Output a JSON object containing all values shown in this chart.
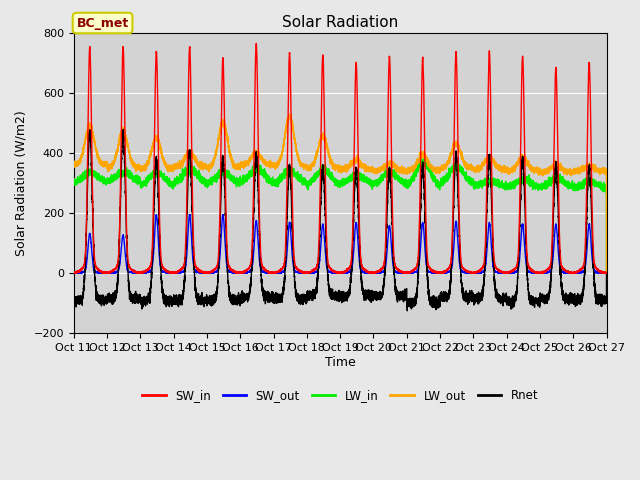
{
  "title": "Solar Radiation",
  "xlabel": "Time",
  "ylabel": "Solar Radiation (W/m2)",
  "ylim": [
    -200,
    800
  ],
  "n_days": 16,
  "dt_per_day": 480,
  "series": {
    "SW_in": {
      "color": "#ff0000",
      "lw": 1.0
    },
    "SW_out": {
      "color": "#0000ff",
      "lw": 1.0
    },
    "LW_in": {
      "color": "#00ee00",
      "lw": 1.0
    },
    "LW_out": {
      "color": "#ffa500",
      "lw": 1.0
    },
    "Rnet": {
      "color": "#000000",
      "lw": 1.0
    }
  },
  "bg_color": "#e8e8e8",
  "plot_bg_color": "#d3d3d3",
  "annotation_text": "BC_met",
  "annotation_color": "#8b0000",
  "annotation_bg": "#ffffcc",
  "annotation_edge": "#cccc00",
  "SW_in_peak": [
    720,
    720,
    705,
    720,
    685,
    730,
    700,
    695,
    670,
    690,
    685,
    705,
    705,
    690,
    655,
    670
  ],
  "SW_out_peak": [
    125,
    120,
    185,
    185,
    185,
    165,
    160,
    155,
    160,
    150,
    160,
    165,
    160,
    155,
    155,
    155
  ],
  "LW_in_base": [
    300,
    305,
    290,
    295,
    295,
    300,
    295,
    290,
    295,
    295,
    285,
    295,
    290,
    285,
    285,
    280
  ],
  "LW_in_peak": [
    335,
    335,
    335,
    345,
    335,
    345,
    340,
    345,
    325,
    335,
    370,
    355,
    305,
    310,
    315,
    305
  ],
  "LW_out_base": [
    360,
    350,
    345,
    355,
    350,
    360,
    355,
    350,
    345,
    340,
    340,
    350,
    345,
    340,
    335,
    340
  ],
  "LW_out_peak": [
    490,
    475,
    450,
    400,
    500,
    400,
    520,
    455,
    375,
    365,
    395,
    430,
    385,
    385,
    360,
    355
  ],
  "Rnet_night": [
    -90,
    -85,
    -90,
    -90,
    -90,
    -80,
    -85,
    -75,
    -75,
    -75,
    -100,
    -80,
    -85,
    -95,
    -85,
    -90
  ],
  "Rnet_peak": [
    465,
    460,
    375,
    400,
    385,
    395,
    345,
    350,
    345,
    345,
    355,
    390,
    385,
    380,
    355,
    355
  ],
  "xtick_labels": [
    "\nOct 12",
    "\nOct 13",
    "\nOct 14",
    "\nOct 15",
    "\nOct 16",
    "\nOct 17",
    "\nOct 18",
    "\nOct 19",
    "\nOct 20",
    "\nOct 21",
    "\nOct 22",
    "\nOct 23",
    "\nOct 24",
    "\nOct 25",
    "\nOct 26",
    "\nOct 27"
  ]
}
